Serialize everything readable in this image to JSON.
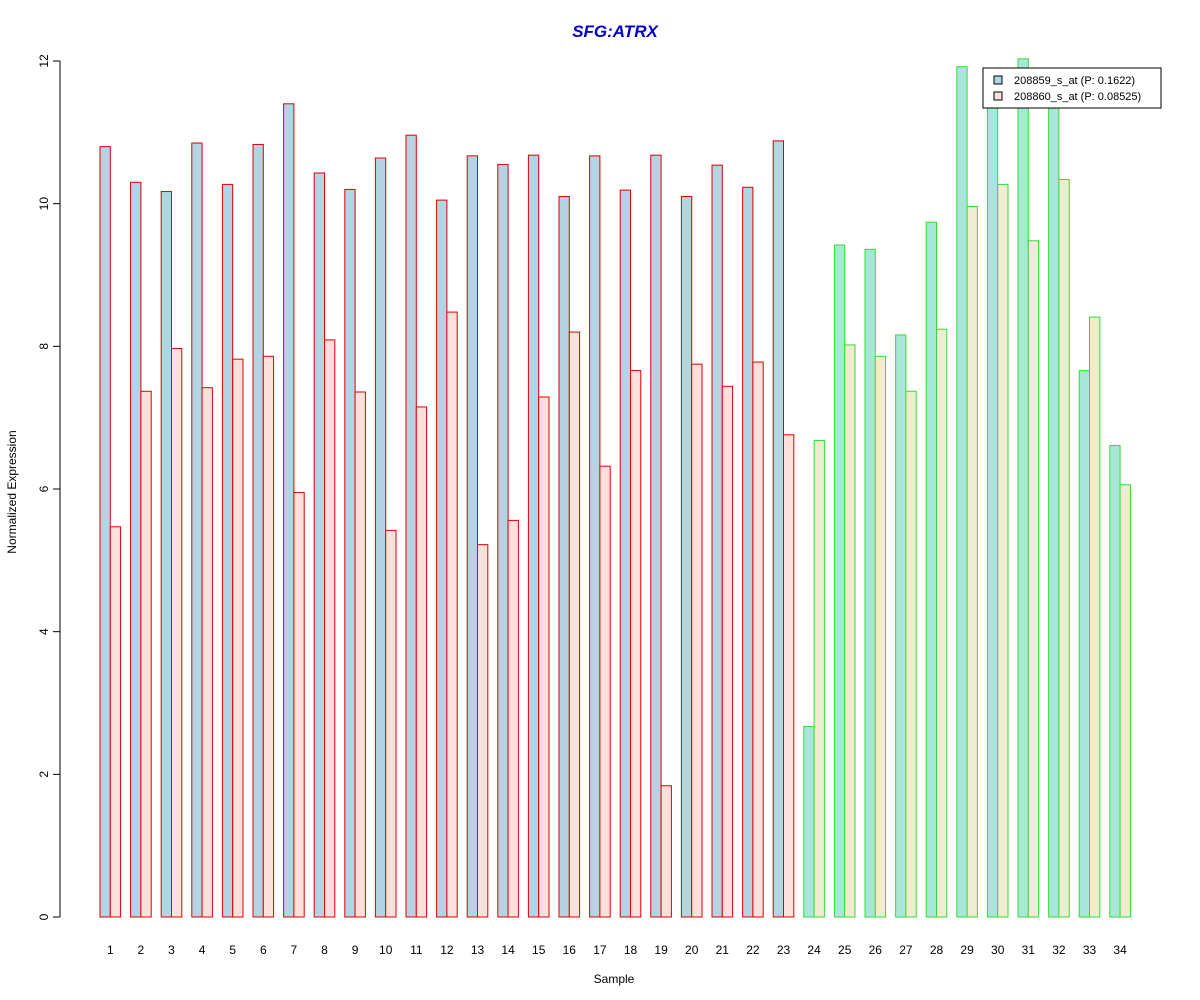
{
  "chart_data": {
    "type": "bar",
    "title": "SFG:ATRX",
    "xlabel": "Sample",
    "ylabel": "Normalized Expression",
    "ylim": [
      0,
      12
    ],
    "yticks": [
      0,
      2,
      4,
      6,
      8,
      10,
      12
    ],
    "categories": [
      "1",
      "2",
      "3",
      "4",
      "5",
      "6",
      "7",
      "8",
      "9",
      "10",
      "11",
      "12",
      "13",
      "14",
      "15",
      "16",
      "17",
      "18",
      "19",
      "20",
      "21",
      "22",
      "23",
      "24",
      "25",
      "26",
      "27",
      "28",
      "29",
      "30",
      "31",
      "32",
      "33",
      "34"
    ],
    "groups": [
      {
        "samples": "1-23",
        "border_color": "#dd0000"
      },
      {
        "samples": "24-34",
        "border_color": "#33dd33"
      }
    ],
    "series": [
      {
        "name": "208859_s_at (P: 0.1622)",
        "fill_group1": "#b4d4e4",
        "fill_group2": "#a8e6d8",
        "values": [
          10.8,
          10.3,
          10.17,
          10.85,
          10.27,
          10.83,
          11.4,
          10.43,
          10.2,
          10.64,
          10.96,
          10.05,
          10.67,
          10.55,
          10.68,
          10.1,
          10.67,
          10.19,
          10.68,
          10.1,
          10.54,
          10.23,
          10.88,
          2.67,
          9.42,
          9.36,
          8.16,
          9.74,
          11.92,
          11.42,
          12.03,
          11.35,
          7.66,
          6.61
        ]
      },
      {
        "name": "208860_s_at (P: 0.08525)",
        "fill_group1": "#fde0dc",
        "fill_group2": "#f0ecd2",
        "values": [
          5.47,
          7.37,
          7.97,
          7.42,
          7.82,
          7.86,
          5.95,
          8.09,
          7.36,
          5.42,
          7.15,
          8.48,
          5.22,
          5.56,
          7.29,
          8.2,
          6.32,
          7.66,
          1.84,
          7.75,
          7.44,
          7.78,
          6.76,
          6.68,
          8.02,
          7.86,
          7.37,
          8.24,
          9.96,
          10.27,
          9.48,
          10.34,
          8.41,
          6.06
        ]
      }
    ],
    "legend_position": "top-right",
    "grid": false
  }
}
